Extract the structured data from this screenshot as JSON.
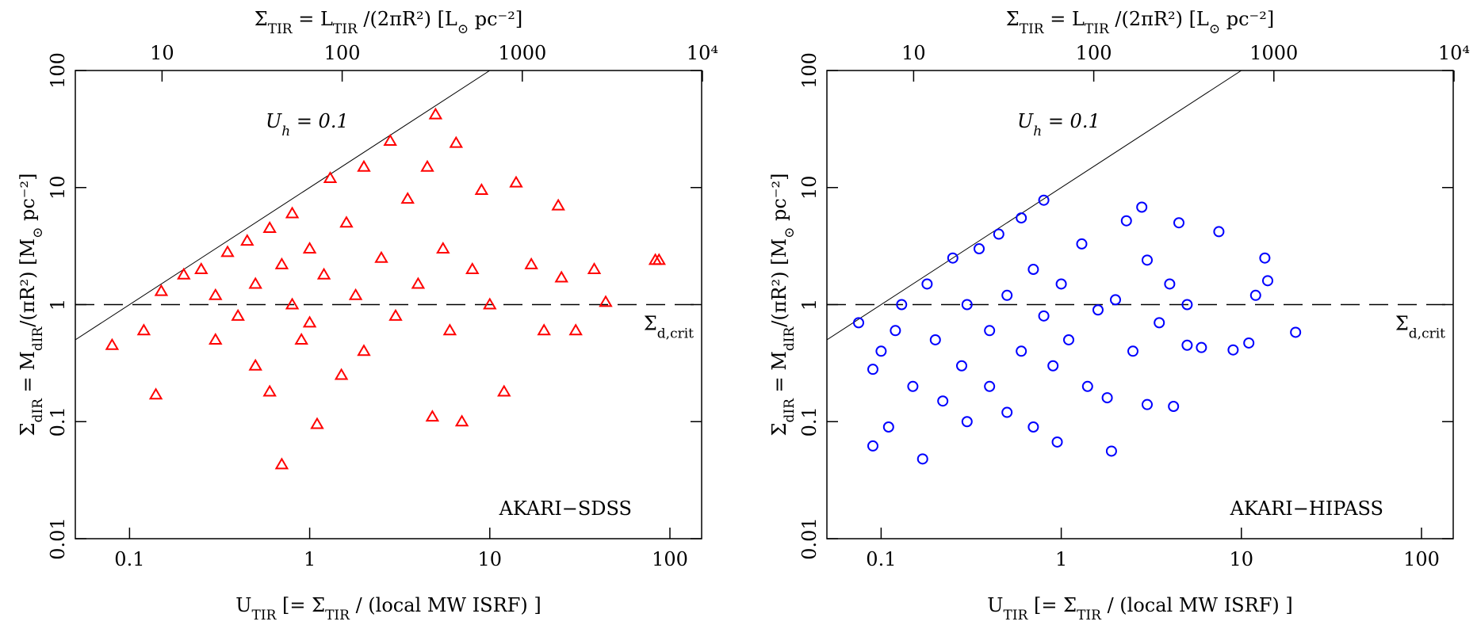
{
  "chart_data": [
    {
      "type": "scatter",
      "label": [
        "AKARI−SDSS"
      ],
      "color": "#ff0000",
      "marker": "triangle",
      "x_label": [
        "U",
        "TIR",
        " [= Σ",
        "TIR",
        " / (local MW ISRF) ]"
      ],
      "y_label": [
        "Σ",
        "dIR",
        " = M",
        "dIR",
        "/(πR²) [M",
        "⊙",
        " pc⁻²]"
      ],
      "top_label": [
        "Σ",
        "TIR",
        " = L",
        "TIR",
        " /(2πR²) [L",
        "⊙",
        " pc⁻²]"
      ],
      "xlim": [
        0.05,
        150
      ],
      "ylim": [
        0.01,
        100
      ],
      "x2lim": [
        3.3,
        9900
      ],
      "log_x": true,
      "log_y": true,
      "xticks": [
        0.1,
        1,
        10,
        100
      ],
      "yticks": [
        0.01,
        0.1,
        1,
        10,
        100
      ],
      "x2ticks": [
        10,
        100,
        1000,
        {
          "value": 10000,
          "label": "10⁴"
        }
      ],
      "hline": 1,
      "hline_label": [
        "Σ",
        "d,crit"
      ],
      "diag_line": {
        "x": [
          0.05,
          10
        ],
        "y": [
          0.5,
          100
        ]
      },
      "diag_label": [
        "U",
        "h",
        " = 0.1"
      ],
      "x": [
        0.08,
        0.14,
        0.12,
        0.15,
        0.2,
        0.25,
        0.3,
        0.3,
        0.35,
        0.4,
        0.45,
        0.5,
        0.5,
        0.6,
        0.6,
        0.7,
        0.7,
        0.8,
        0.8,
        0.9,
        1.0,
        1.0,
        1.1,
        1.2,
        1.3,
        1.5,
        1.6,
        1.8,
        2,
        2,
        2.5,
        2.8,
        3,
        3.5,
        4,
        4.5,
        4.8,
        5,
        5.5,
        6,
        6.5,
        7,
        8,
        9,
        10,
        12,
        14,
        17,
        20,
        24,
        25,
        30,
        38,
        44,
        83,
        87
      ],
      "y": [
        0.45,
        0.17,
        0.6,
        1.3,
        1.8,
        2.0,
        1.2,
        0.5,
        2.8,
        0.8,
        3.5,
        1.5,
        0.3,
        4.5,
        0.18,
        2.2,
        0.043,
        6,
        1.0,
        0.5,
        3,
        0.7,
        0.095,
        1.8,
        12,
        0.25,
        5,
        1.2,
        15,
        0.4,
        2.5,
        25,
        0.8,
        8,
        1.5,
        15,
        0.11,
        42,
        3,
        0.6,
        24,
        0.1,
        2,
        9.5,
        1.0,
        0.18,
        11,
        2.2,
        0.6,
        7,
        1.7,
        0.6,
        2,
        1.05,
        2.4,
        2.4
      ]
    },
    {
      "type": "scatter",
      "label": [
        "AKARI−HIPASS"
      ],
      "color": "#0000ff",
      "marker": "circle",
      "x_label": [
        "U",
        "TIR",
        " [= Σ",
        "TIR",
        " / (local MW ISRF) ]"
      ],
      "y_label": [
        "Σ",
        "dIR",
        " = M",
        "dIR",
        "/(πR²) [M",
        "⊙",
        " pc⁻²]"
      ],
      "top_label": [
        "Σ",
        "TIR",
        " = L",
        "TIR",
        " /(2πR²) [L",
        "⊙",
        " pc⁻²]"
      ],
      "xlim": [
        0.05,
        150
      ],
      "ylim": [
        0.01,
        100
      ],
      "x2lim": [
        3.3,
        9900
      ],
      "log_x": true,
      "log_y": true,
      "xticks": [
        0.1,
        1,
        10,
        100
      ],
      "yticks": [
        0.01,
        0.1,
        1,
        10,
        100
      ],
      "x2ticks": [
        10,
        100,
        1000,
        {
          "value": 10000,
          "label": "10⁴"
        }
      ],
      "hline": 1,
      "hline_label": [
        "Σ",
        "d,crit"
      ],
      "diag_line": {
        "x": [
          0.05,
          10
        ],
        "y": [
          0.5,
          100
        ]
      },
      "diag_label": [
        "U",
        "h",
        " = 0.1"
      ],
      "x": [
        0.075,
        0.09,
        0.09,
        0.1,
        0.11,
        0.12,
        0.13,
        0.15,
        0.17,
        0.18,
        0.2,
        0.22,
        0.25,
        0.28,
        0.3,
        0.3,
        0.35,
        0.4,
        0.4,
        0.45,
        0.5,
        0.5,
        0.6,
        0.6,
        0.7,
        0.7,
        0.8,
        0.8,
        0.9,
        0.95,
        1.0,
        1.1,
        1.3,
        1.4,
        1.6,
        1.8,
        1.9,
        2,
        2.3,
        2.5,
        2.8,
        3,
        3,
        3.5,
        4,
        4.2,
        4.5,
        5,
        5,
        6,
        7.5,
        9,
        11,
        12,
        13.5,
        14,
        20
      ],
      "y": [
        0.7,
        0.062,
        0.28,
        0.4,
        0.09,
        0.6,
        1.0,
        0.2,
        0.048,
        1.5,
        0.5,
        0.15,
        2.5,
        0.3,
        1.0,
        0.1,
        3,
        0.6,
        0.2,
        4,
        1.2,
        0.12,
        5.5,
        0.4,
        2,
        0.09,
        7.8,
        0.8,
        0.3,
        0.067,
        1.5,
        0.5,
        3.3,
        0.2,
        0.9,
        0.16,
        0.056,
        1.1,
        5.2,
        0.4,
        6.8,
        0.14,
        2.4,
        0.7,
        1.5,
        0.135,
        5,
        1.0,
        0.45,
        0.43,
        4.2,
        0.41,
        0.47,
        1.2,
        2.5,
        1.6,
        0.58
      ]
    }
  ]
}
